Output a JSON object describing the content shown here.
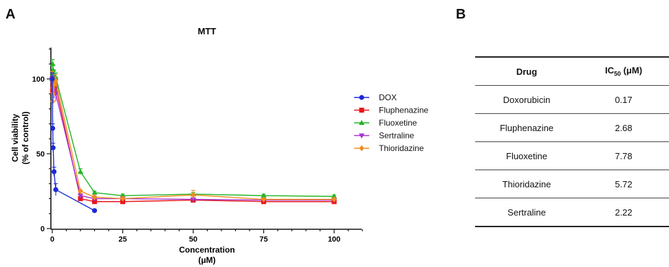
{
  "panels": {
    "a": "A",
    "b": "B"
  },
  "chart_data": {
    "type": "line",
    "title": "MTT",
    "xlabel_line1": "Concentration",
    "xlabel_line2": "(μM)",
    "ylabel_line1": "Cell viability",
    "ylabel_line2": "(% of control)",
    "xlim": [
      0,
      100
    ],
    "ylim": [
      0,
      120
    ],
    "xticks": [
      0,
      25,
      50,
      75,
      100
    ],
    "yticks": [
      0,
      50,
      100
    ],
    "grid": false,
    "legend_position": "right",
    "series": [
      {
        "name": "DOX",
        "color": "#1a2bd6",
        "marker": "circle",
        "x": [
          0,
          0.16,
          0.31,
          0.63,
          1.25,
          15
        ],
        "y": [
          100,
          67,
          54,
          38,
          26,
          12
        ],
        "err": [
          4,
          3,
          3,
          3,
          4,
          1
        ]
      },
      {
        "name": "Fluphenazine",
        "color": "#e8151b",
        "marker": "square",
        "x": [
          0,
          0.16,
          0.31,
          0.63,
          1.25,
          10,
          15,
          25,
          50,
          75,
          100
        ],
        "y": [
          100,
          92,
          95,
          97,
          95,
          20,
          18,
          18,
          19,
          18,
          18
        ],
        "err": [
          5,
          6,
          4,
          5,
          6,
          1,
          1,
          1,
          1,
          1,
          1
        ]
      },
      {
        "name": "Fluoxetine",
        "color": "#22b324",
        "marker": "triangle-up",
        "x": [
          0,
          0.16,
          0.31,
          0.63,
          1.25,
          10,
          15,
          25,
          50,
          75,
          100
        ],
        "y": [
          100,
          110,
          106,
          103,
          101,
          38,
          24,
          22,
          23,
          22,
          21.5
        ],
        "err": [
          3,
          3,
          3,
          3,
          3,
          2,
          1,
          1,
          1,
          1,
          1
        ]
      },
      {
        "name": "Sertraline",
        "color": "#a633d1",
        "marker": "triangle-down",
        "x": [
          0,
          0.16,
          0.31,
          0.63,
          1.25,
          10,
          15,
          25,
          50,
          75,
          100
        ],
        "y": [
          100,
          97,
          93,
          92,
          90,
          22,
          20,
          20,
          19.5,
          19,
          19
        ],
        "err": [
          4,
          5,
          5,
          5,
          5,
          1,
          1,
          1,
          1,
          1,
          1
        ]
      },
      {
        "name": "Thioridazine",
        "color": "#f28c1f",
        "marker": "diamond",
        "x": [
          0,
          0.16,
          0.31,
          0.63,
          1.25,
          10,
          15,
          25,
          50,
          75,
          100
        ],
        "y": [
          100,
          85,
          90,
          96,
          99,
          25,
          21,
          20,
          22.5,
          19.5,
          19.5
        ],
        "err": [
          5,
          6,
          4,
          5,
          4,
          1,
          1,
          1,
          3,
          1,
          1
        ]
      }
    ]
  },
  "table": {
    "header_drug": "Drug",
    "header_ic_main": "IC",
    "header_ic_sub": "50",
    "header_ic_unit": " (μM)",
    "rows": [
      {
        "drug": "Doxorubicin",
        "ic50": "0.17"
      },
      {
        "drug": "Fluphenazine",
        "ic50": "2.68"
      },
      {
        "drug": "Fluoxetine",
        "ic50": "7.78"
      },
      {
        "drug": "Thioridazine",
        "ic50": "5.72"
      },
      {
        "drug": "Sertraline",
        "ic50": "2.22"
      }
    ]
  }
}
